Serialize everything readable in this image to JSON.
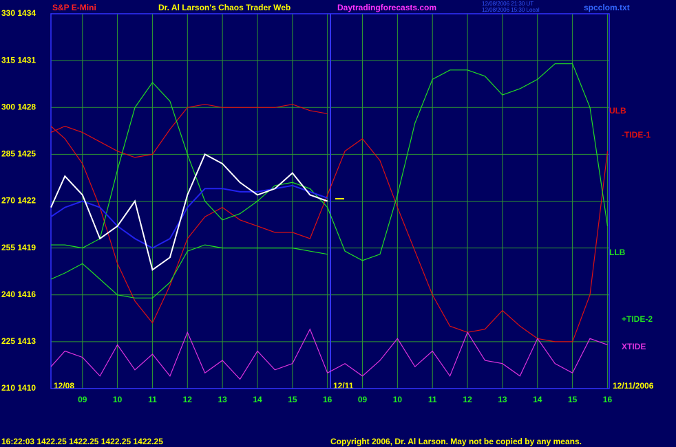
{
  "chart_data": {
    "type": "line",
    "title": "Dr. Al Larson's Chaos Trader Web",
    "instrument": "S&P E-Mini",
    "website": "Daytradingforecasts.com",
    "timestamp_lines": [
      "12/08/2006 21:30 UT",
      "12/08/2006 15:30 Local"
    ],
    "file_name": "spcclom.txt",
    "day_labels": [
      "12/08",
      "12/11",
      "12/11/2006"
    ],
    "status_line": "16:22:03  1422.25 1422.25 1422.25 1422.25",
    "copyright": "Copyright 2006, Dr. Al Larson. May not be copied by any means.",
    "grid": true,
    "xlim": [
      -0.9,
      15.05
    ],
    "ylim": [
      210,
      330
    ],
    "yticks": [
      {
        "value": 330,
        "label": "330 1434"
      },
      {
        "value": 315,
        "label": "315 1431"
      },
      {
        "value": 300,
        "label": "300 1428"
      },
      {
        "value": 285,
        "label": "285 1425"
      },
      {
        "value": 270,
        "label": "270 1422"
      },
      {
        "value": 255,
        "label": "255 1419"
      },
      {
        "value": 240,
        "label": "240 1416"
      },
      {
        "value": 225,
        "label": "225 1413"
      },
      {
        "value": 210,
        "label": "210 1410"
      }
    ],
    "xticks": [
      {
        "value": 0,
        "label": "09"
      },
      {
        "value": 1,
        "label": "10"
      },
      {
        "value": 2,
        "label": "11"
      },
      {
        "value": 3,
        "label": "12"
      },
      {
        "value": 4,
        "label": "13"
      },
      {
        "value": 5,
        "label": "14"
      },
      {
        "value": 6,
        "label": "15"
      },
      {
        "value": 7,
        "label": "16"
      },
      {
        "value": 8,
        "label": "09"
      },
      {
        "value": 9,
        "label": "10"
      },
      {
        "value": 10,
        "label": "11"
      },
      {
        "value": 11,
        "label": "12"
      },
      {
        "value": 12,
        "label": "13"
      },
      {
        "value": 13,
        "label": "14"
      },
      {
        "value": 14,
        "label": "15"
      },
      {
        "value": 15,
        "label": "16"
      }
    ],
    "x": [
      -0.9,
      -0.5,
      0,
      0.5,
      1,
      1.5,
      2,
      2.5,
      3,
      3.5,
      4,
      4.5,
      5,
      5.5,
      6,
      6.5,
      7,
      7.5,
      8,
      8.5,
      9,
      9.5,
      10,
      10.5,
      11,
      11.5,
      12,
      12.5,
      13,
      13.5,
      14,
      14.5,
      15
    ],
    "series": [
      {
        "name": "ULB",
        "color": "#dd1111",
        "values": [
          292,
          294,
          292,
          289,
          286,
          284,
          285,
          293,
          300,
          301,
          300,
          300,
          300,
          300,
          301,
          299,
          298,
          null,
          null,
          null,
          null,
          null,
          null,
          null,
          null,
          null,
          null,
          null,
          null,
          null,
          null,
          null,
          null
        ]
      },
      {
        "name": "-TIDE-1",
        "color": "#dd1111",
        "values": [
          294,
          290,
          282,
          268,
          250,
          238,
          231,
          243,
          258,
          265,
          268,
          264,
          262,
          260,
          260,
          258,
          272,
          286,
          290,
          283,
          268,
          254,
          240,
          230,
          228,
          229,
          235,
          230,
          226,
          225,
          225,
          240,
          286
        ]
      },
      {
        "name": "LLB",
        "color": "#22dd22",
        "values": [
          245,
          247,
          250,
          245,
          240,
          239,
          239,
          244,
          254,
          256,
          255,
          255,
          255,
          255,
          255,
          254,
          253,
          null,
          null,
          null,
          null,
          null,
          null,
          null,
          null,
          null,
          null,
          null,
          null,
          null,
          null,
          null,
          null
        ]
      },
      {
        "name": "+TIDE-2",
        "color": "#22dd22",
        "values": [
          256,
          256,
          255,
          258,
          280,
          300,
          308,
          302,
          285,
          270,
          264,
          266,
          270,
          275,
          276,
          274,
          268,
          254,
          251,
          253,
          272,
          295,
          309,
          312,
          312,
          310,
          304,
          306,
          309,
          314,
          314,
          300,
          262
        ]
      },
      {
        "name": "XTIDE",
        "color": "#dd33dd",
        "values": [
          217,
          222,
          220,
          214,
          224,
          216,
          221,
          214,
          228,
          215,
          219,
          213,
          222,
          216,
          218,
          229,
          215,
          218,
          214,
          219,
          226,
          217,
          222,
          214,
          228,
          219,
          218,
          214,
          226,
          218,
          215,
          226,
          224
        ]
      },
      {
        "color": "#2222ee",
        "values": [
          265,
          268,
          270,
          268,
          262,
          258,
          255,
          258,
          268,
          274,
          274,
          273,
          273,
          274,
          275,
          273,
          271,
          null,
          null,
          null,
          null,
          null,
          null,
          null,
          null,
          null,
          null,
          null,
          null,
          null,
          null,
          null,
          null
        ]
      },
      {
        "color": "#ffffff",
        "values": [
          268,
          278,
          272,
          258,
          262,
          270,
          248,
          252,
          272,
          285,
          282,
          276,
          272,
          274,
          279,
          272,
          270,
          null,
          null,
          null,
          null,
          null,
          null,
          null,
          null,
          null,
          null,
          null,
          null,
          null,
          null,
          null,
          null
        ]
      }
    ]
  }
}
